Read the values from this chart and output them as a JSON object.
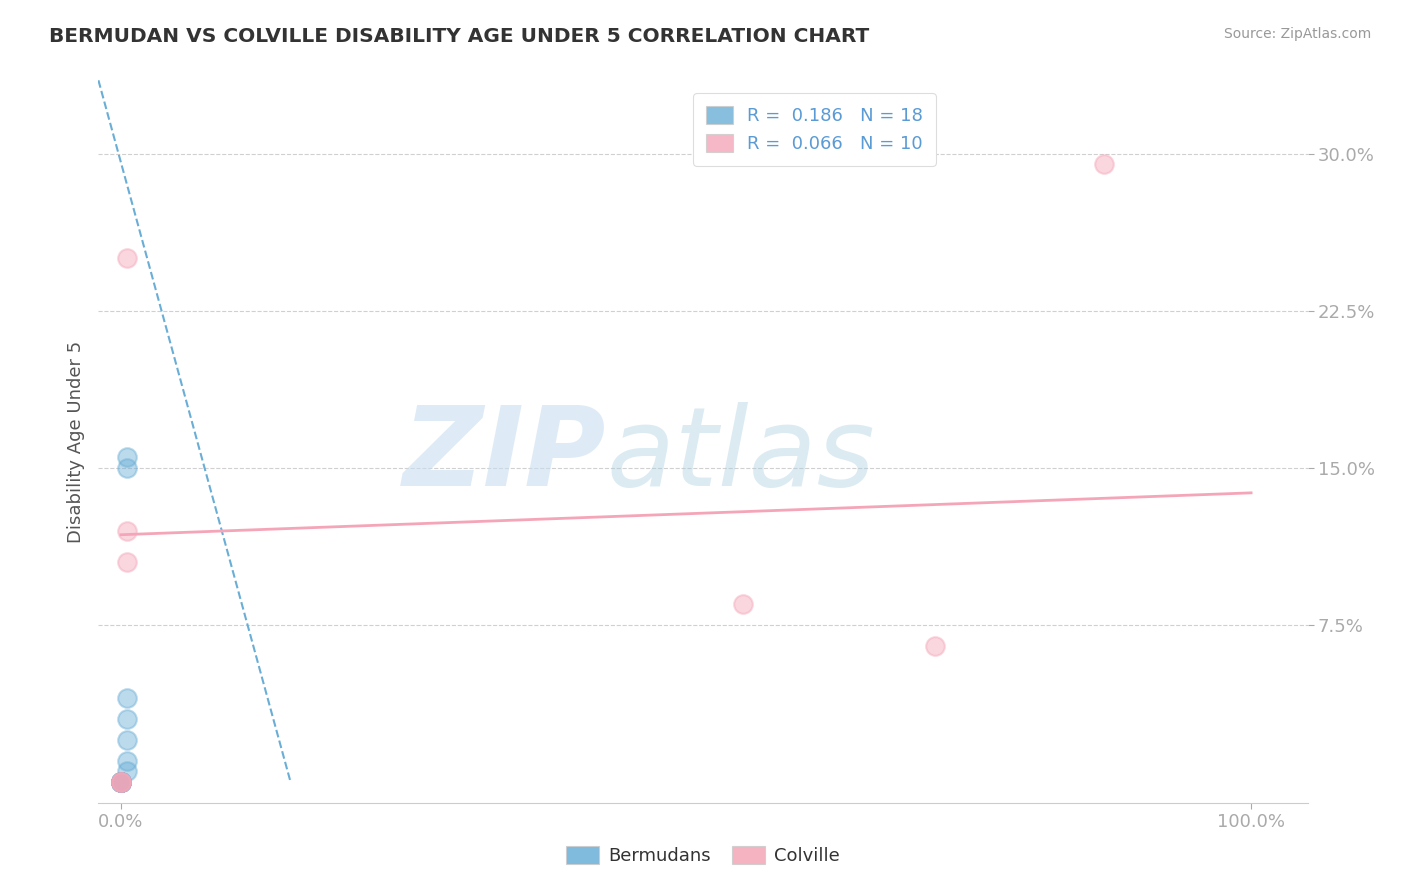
{
  "title": "BERMUDAN VS COLVILLE DISABILITY AGE UNDER 5 CORRELATION CHART",
  "source": "Source: ZipAtlas.com",
  "ylabel": "Disability Age Under 5",
  "xlim": [
    -0.02,
    1.05
  ],
  "ylim": [
    -0.01,
    0.335
  ],
  "bermudans_R": "0.186",
  "bermudans_N": "18",
  "colville_R": "0.066",
  "colville_N": "10",
  "bermudans_color": "#6aaed6",
  "colville_color": "#f4a6b8",
  "bermudans_scatter": [
    [
      0.0,
      0.0
    ],
    [
      0.0,
      0.0
    ],
    [
      0.0,
      0.0
    ],
    [
      0.0,
      0.0
    ],
    [
      0.0,
      0.0
    ],
    [
      0.0,
      0.0
    ],
    [
      0.0,
      0.0
    ],
    [
      0.0,
      0.0
    ],
    [
      0.0,
      0.0
    ],
    [
      0.0,
      0.0
    ],
    [
      0.0,
      0.0
    ],
    [
      0.005,
      0.005
    ],
    [
      0.005,
      0.01
    ],
    [
      0.005,
      0.02
    ],
    [
      0.005,
      0.03
    ],
    [
      0.005,
      0.04
    ],
    [
      0.005,
      0.15
    ],
    [
      0.005,
      0.155
    ]
  ],
  "colville_scatter": [
    [
      0.0,
      0.0
    ],
    [
      0.0,
      0.0
    ],
    [
      0.0,
      0.0
    ],
    [
      0.0,
      0.0
    ],
    [
      0.005,
      0.105
    ],
    [
      0.005,
      0.12
    ],
    [
      0.005,
      0.25
    ],
    [
      0.55,
      0.085
    ],
    [
      0.72,
      0.065
    ],
    [
      0.87,
      0.295
    ]
  ],
  "bermudans_trend_x": [
    -0.02,
    0.15
  ],
  "bermudans_trend_y": [
    0.335,
    0.0
  ],
  "colville_trend_x": [
    0.0,
    1.0
  ],
  "colville_trend_y": [
    0.118,
    0.138
  ],
  "watermark_zip": "ZIP",
  "watermark_atlas": "atlas",
  "background_color": "#ffffff",
  "grid_color": "#d0d0d0",
  "yticks": [
    0.075,
    0.15,
    0.225,
    0.3
  ],
  "ytick_labels": [
    "7.5%",
    "15.0%",
    "22.5%",
    "30.0%"
  ],
  "xticks": [
    0.0,
    1.0
  ],
  "xtick_labels": [
    "0.0%",
    "100.0%"
  ]
}
